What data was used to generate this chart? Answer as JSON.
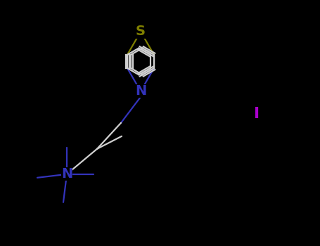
{
  "bg_color": "#000000",
  "bond_color": "#d0d0d0",
  "S_color": "#808000",
  "N_color": "#3333bb",
  "N2_color": "#3333bb",
  "I_color": "#aa00cc",
  "S_label": "S",
  "N_label": "N",
  "N2_label": "N",
  "I_label": "I",
  "line_width": 1.6,
  "figsize": [
    4.55,
    3.5
  ],
  "dpi": 100
}
